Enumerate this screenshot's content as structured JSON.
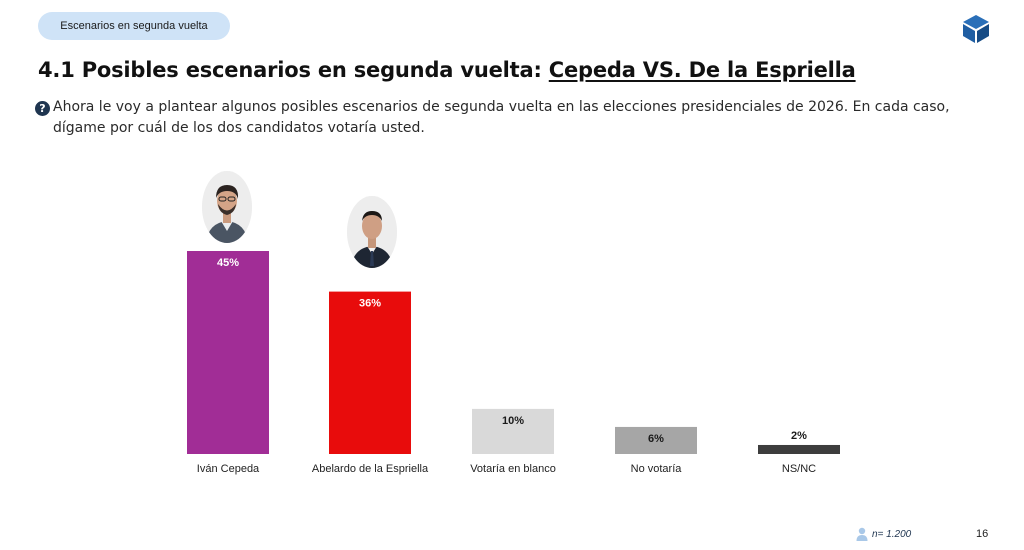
{
  "header": {
    "section_pill": "Escenarios en segunda vuelta",
    "logo_icon": "cube-logo-icon"
  },
  "title": {
    "prefix": "4.1 Posibles escenarios en segunda vuelta: ",
    "underlined": "Cepeda VS. De la Espriella"
  },
  "question": {
    "icon": "question-icon",
    "text": "Ahora le voy a plantear algunos posibles escenarios de segunda vuelta en las elecciones presidenciales de 2026. En cada caso, dígame por cuál de los dos candidatos votaría usted."
  },
  "chart_data": {
    "type": "bar",
    "categories": [
      "Iván Cepeda",
      "Abelardo de la Espriella",
      "Votaría en blanco",
      "No votaría",
      "NS/NC"
    ],
    "values": [
      45,
      36,
      10,
      6,
      2
    ],
    "value_labels": [
      "45%",
      "36%",
      "10%",
      "6%",
      "2%"
    ],
    "colors": [
      "#a12d96",
      "#e80c0c",
      "#d9d9d9",
      "#a6a6a6",
      "#3d3d3d"
    ],
    "label_colors": [
      "#ffffff",
      "#ffffff",
      "#1a1a1a",
      "#1a1a1a",
      "#1a1a1a"
    ],
    "label_position": [
      "inside",
      "inside",
      "inside",
      "inside",
      "above"
    ],
    "candidate_photos": [
      "Iván Cepeda",
      "Abelardo de la Espriella"
    ],
    "ylim": [
      0,
      45
    ],
    "grid": false,
    "title": "",
    "xlabel": "",
    "ylabel": ""
  },
  "footer": {
    "sample_icon": "person-icon",
    "sample": "n= 1.200",
    "page_number": "16"
  }
}
